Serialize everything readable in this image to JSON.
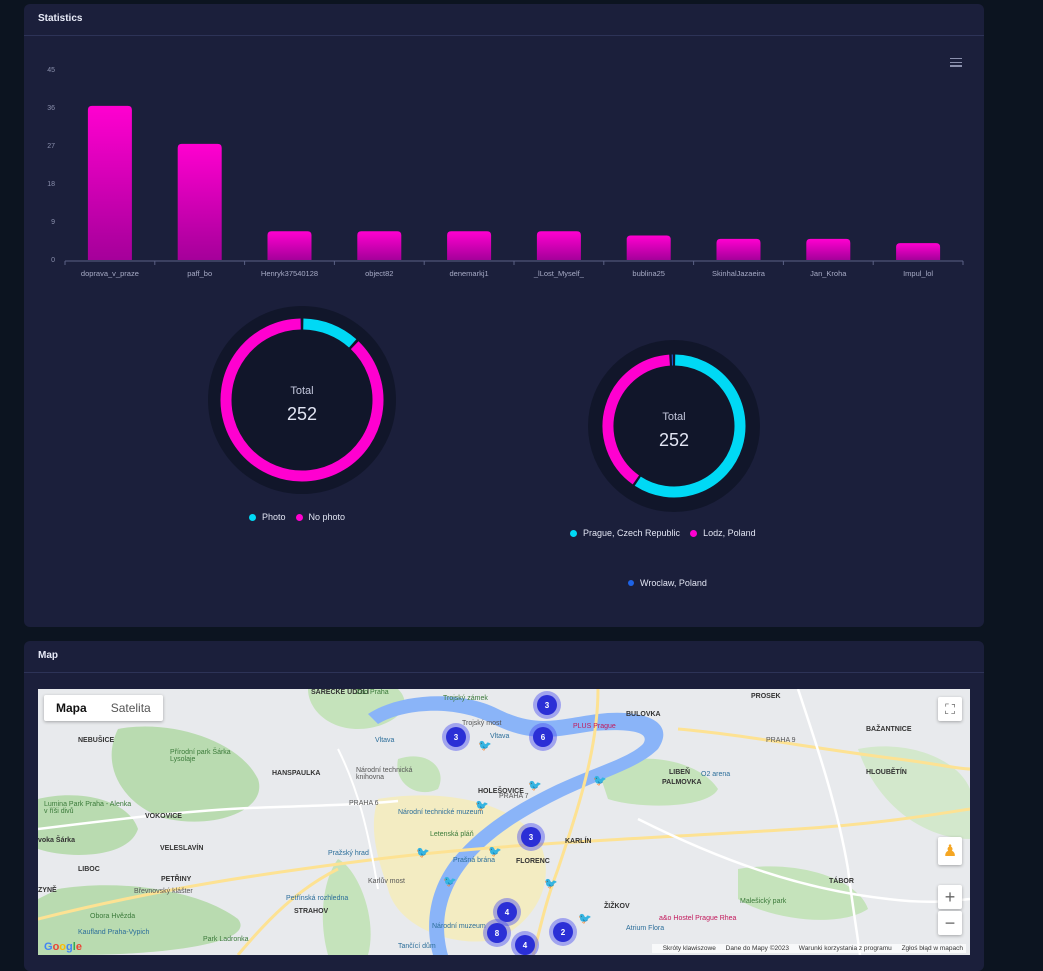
{
  "stats": {
    "title": "Statistics",
    "bar_chart": {
      "type": "bar",
      "categories": [
        "doprava_v_praze",
        "paff_bo",
        "Henryk37540128",
        "object82",
        "denemarkj1",
        "_lLost_Myself_",
        "bublina25",
        "SkinhalJazaeira",
        "Jan_Kroha",
        "Impul_lol"
      ],
      "values": [
        36.5,
        27.5,
        6.8,
        6.8,
        6.8,
        6.8,
        5.8,
        5,
        5,
        4
      ],
      "yticks": [
        "0",
        "9",
        "18",
        "27",
        "36",
        "45"
      ],
      "ylim": [
        0,
        45
      ],
      "colors": {
        "top": "#ff00d0",
        "bottom": "#a5009a"
      }
    },
    "donut_photo": {
      "center_label": "Total",
      "center_value": "252",
      "chart_data": {
        "type": "pie",
        "slices": [
          {
            "label": "Photo",
            "value": 30,
            "color": "#00d9f5"
          },
          {
            "label": "No photo",
            "value": 222,
            "color": "#ff00d0"
          }
        ]
      }
    },
    "donut_location": {
      "center_label": "Total",
      "center_value": "252",
      "chart_data": {
        "type": "pie",
        "slices": [
          {
            "label": "Prague, Czech Republic",
            "value": 150,
            "color": "#00d9f5"
          },
          {
            "label": "Lodz, Poland",
            "value": 100,
            "color": "#ff00d0"
          },
          {
            "label": "Wroclaw, Poland",
            "value": 2,
            "color": "#1e63e6"
          }
        ]
      }
    }
  },
  "map": {
    "title": "Map",
    "type_buttons": [
      "Mapa",
      "Satelita"
    ],
    "labels": {
      "sarecke": "SÁRECKÉ ÚDOLÍ",
      "zoo": "Zoo Praha",
      "troja": "Trojský zámek",
      "trojsky_most": "Trojský most",
      "plus": "PLUS Prague",
      "bulovka": "BULOVKA",
      "prosek": "PROSEK",
      "bazantnice": "BAŽANTNICE",
      "nebusice": "NEBUŠICE",
      "rokle": "Přírodní park Šárka Lysolaje",
      "hanspaulka": "HANSPAULKA",
      "ntm": "Národní technická knihovna",
      "holesovice": "HOLEŠOVICE",
      "liben": "LIBEŇ",
      "palmovka": "PALMOVKA",
      "o2": "O2 arena",
      "hloubetin": "HLOUBĚTÍN",
      "praha6": "PRAHA 6",
      "praha7": "PRAHA 7",
      "praha9": "PRAHA 9",
      "lumina": "Lumina Park Praha - Alenka v říši divů",
      "vokovice": "VOKOVICE",
      "ntmuzeum": "Národní technické muzeum",
      "letna": "Letenská pláň",
      "veleslavin": "VELESLAVÍN",
      "karlin": "KARLÍN",
      "vokasarka": "vokа Šárka",
      "hrad": "Pražský hrad",
      "brana": "Prašná brána",
      "florenc": "FLORENC",
      "liboc": "LIBOC",
      "petriny": "PETŘINY",
      "brevnov": "Břevnovský klášter",
      "karluv": "Karlův most",
      "zizkov": "ŽIŽKOV",
      "tabor": "TÁBOR",
      "petrin": "Petřínská rozhledna",
      "strahov": "STRAHOV",
      "malesice": "Malešický park",
      "ruzyne": "ZYNĚ",
      "hvezda": "Obora Hvězda",
      "kaufland": "Kaufland Praha-Vypich",
      "ladronka": "Park Ladronka",
      "muzeum": "Národní muzeum",
      "flora": "Atrium Flora",
      "tancici": "Tančící dům",
      "hostel": "a&o Hostel Prague Rhea",
      "vltava": "Vltava",
      "praha": "Praha"
    },
    "clusters": [
      "3",
      "3",
      "6",
      "3",
      "4",
      "8",
      "2",
      "4"
    ],
    "attribution": [
      "Skróty klawiszowe",
      "Dane do Mapy ©2023",
      "Warunki korzystania z programu",
      "Zgłoś błąd w mapach"
    ],
    "google": "Google"
  }
}
